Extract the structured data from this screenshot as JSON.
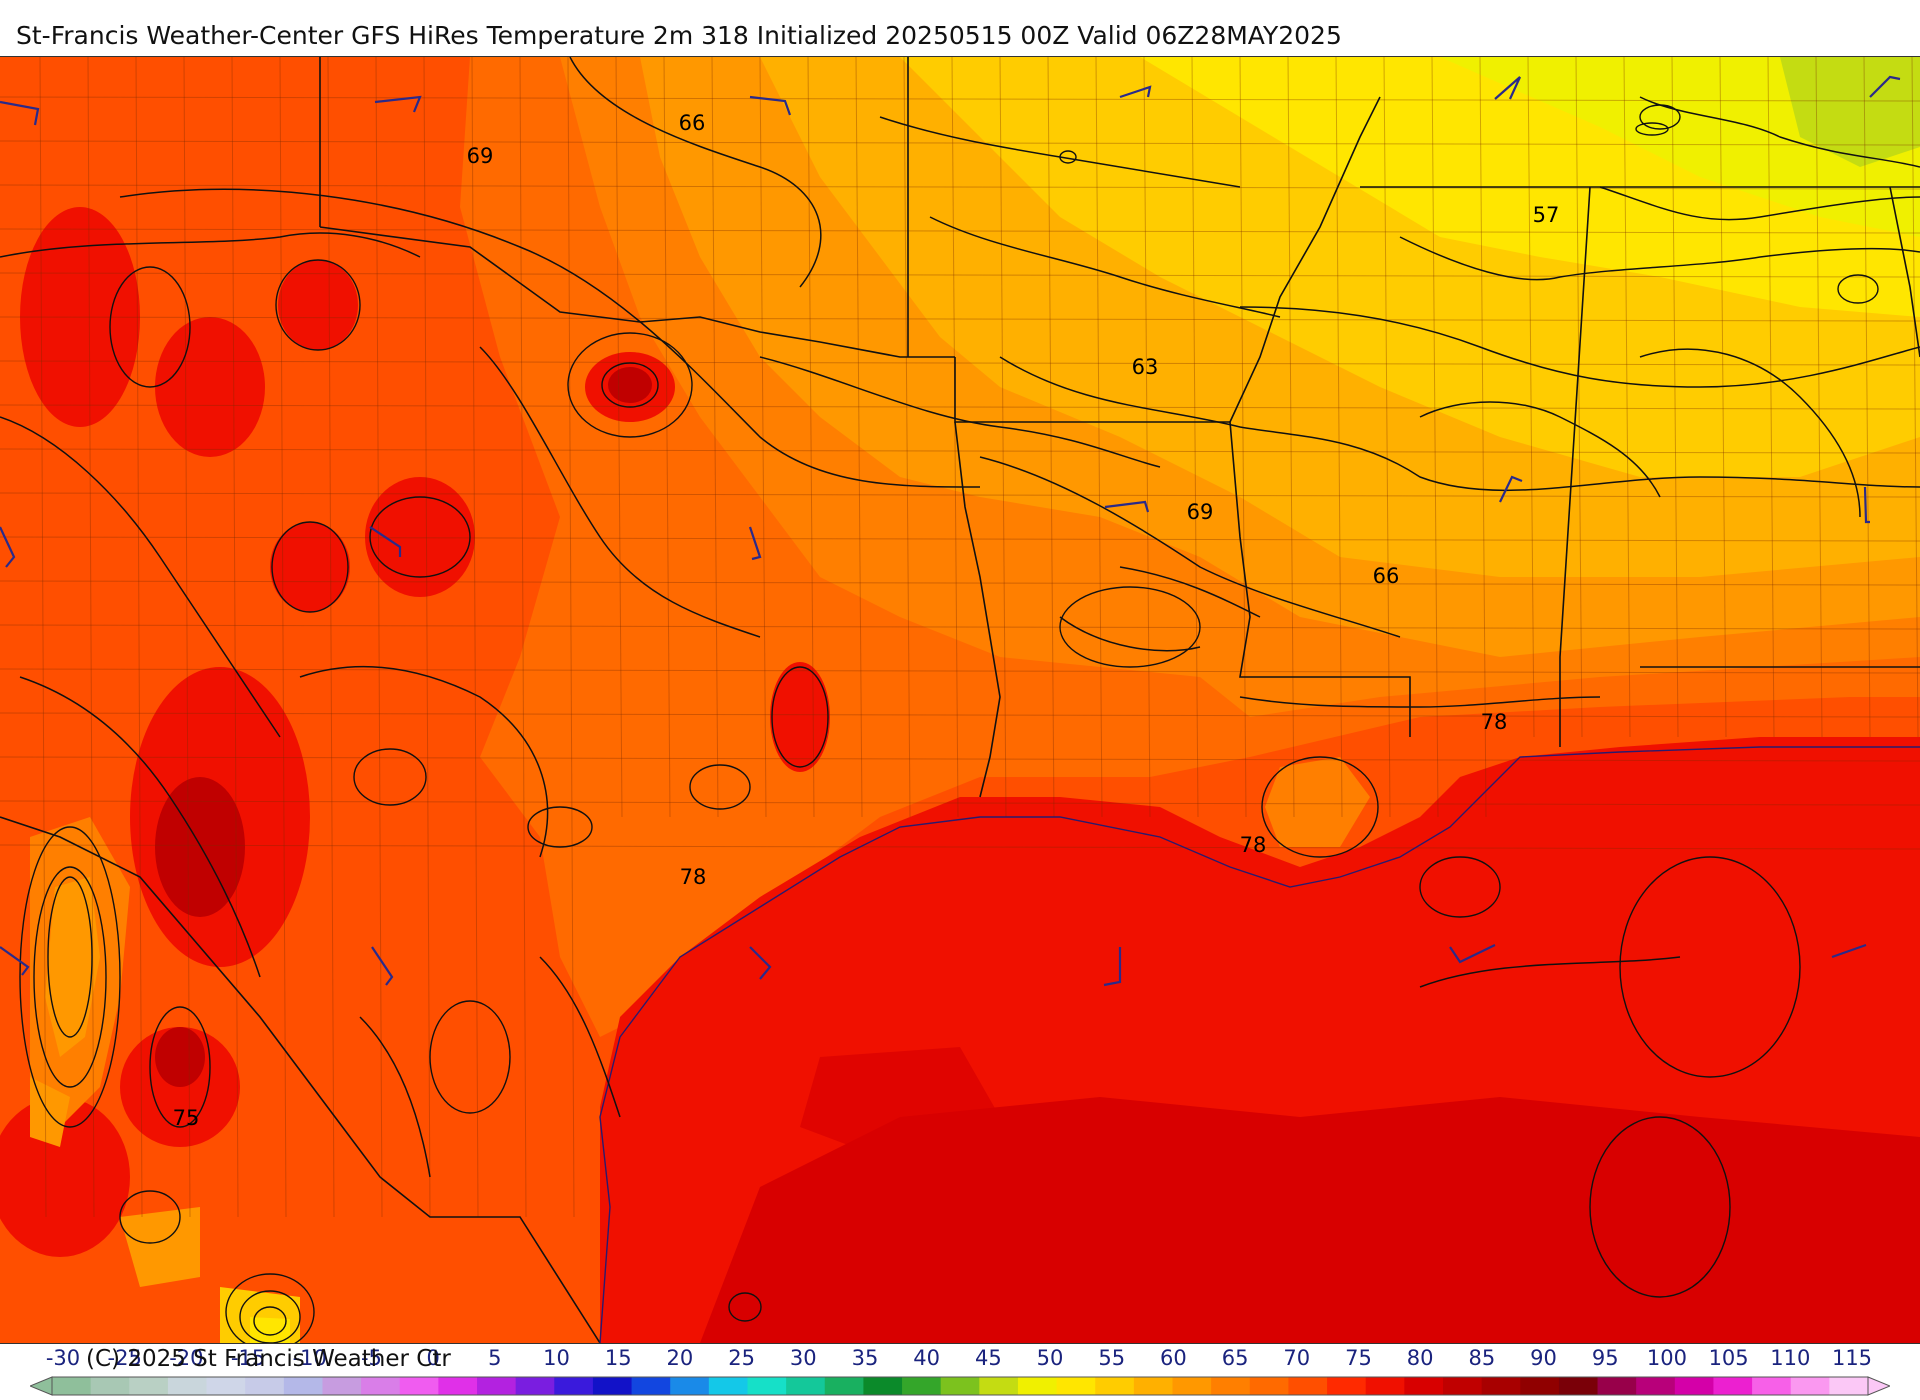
{
  "title": "St-Francis Weather-Center GFS HiRes Temperature 2m  318 Initialized 20250515 00Z Valid 06Z28MAY2025",
  "copyright": "(C) 2025 St Francis Weather Ctr",
  "legend": {
    "ticks": [
      "-30",
      "-25",
      "-20",
      "-15",
      "-10",
      "-5",
      "0",
      "5",
      "10",
      "15",
      "20",
      "25",
      "30",
      "35",
      "40",
      "45",
      "50",
      "55",
      "60",
      "65",
      "70",
      "75",
      "80",
      "85",
      "90",
      "95",
      "100",
      "105",
      "110",
      "115"
    ],
    "colors": [
      "#8fbf9b",
      "#a8c8b4",
      "#b9d0c4",
      "#c9d6dc",
      "#cfd6e8",
      "#c7cbe8",
      "#b4b8e8",
      "#c79ce0",
      "#d97ee8",
      "#f05cf0",
      "#e030e8",
      "#b322e0",
      "#7a1ee0",
      "#3a1adc",
      "#1212c8",
      "#1246e0",
      "#1a8ae8",
      "#14c8e8",
      "#16e0c8",
      "#14c89a",
      "#19b060",
      "#0b8a2a",
      "#34a62a",
      "#7cc21e",
      "#c4dc12",
      "#f0f000",
      "#ffe600",
      "#ffcc00",
      "#ffb000",
      "#ff9800",
      "#ff7f00",
      "#ff6a00",
      "#ff4f00",
      "#ff2a00",
      "#f01000",
      "#d80000",
      "#c00000",
      "#a80000",
      "#900000",
      "#7a0008",
      "#98004a",
      "#b8007a",
      "#d400a8",
      "#ec20d0",
      "#f760e8",
      "#fa98f0",
      "#fbc8f6"
    ]
  },
  "contour_labels": [
    {
      "text": "66",
      "key": "c66a"
    },
    {
      "text": "69",
      "key": "c69a"
    },
    {
      "text": "57",
      "key": "c57"
    },
    {
      "text": "63",
      "key": "c63"
    },
    {
      "text": "69",
      "key": "c69b"
    },
    {
      "text": "66",
      "key": "c66b"
    },
    {
      "text": "78",
      "key": "c78a"
    },
    {
      "text": "78",
      "key": "c78b"
    },
    {
      "text": "78",
      "key": "c78c"
    },
    {
      "text": "75",
      "key": "c75"
    }
  ],
  "colors": {
    "gulf": "#f01000",
    "deep_red": "#d80000",
    "orange_red": "#ff4f00",
    "orange": "#ff6a00",
    "light_orange": "#ff7f00",
    "amber": "#ff9800",
    "gold": "#ffb000",
    "yellow_orange": "#ffcc00",
    "yellow": "#ffe600",
    "bright_yellow": "#f0f000",
    "lime": "#c4dc12",
    "contour": "#111111",
    "barb": "#2a2a8a"
  }
}
